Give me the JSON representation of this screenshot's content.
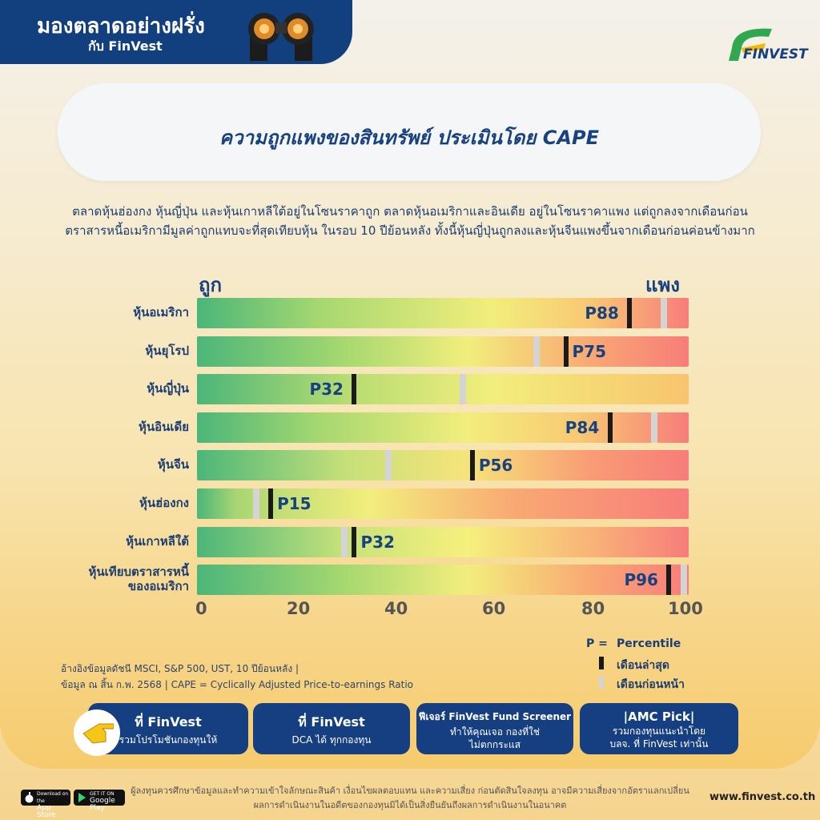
{
  "header": {
    "brand_title": "มองตลาดอย่างฝรั่ง",
    "brand_sub": "กับ FinVest",
    "logo_text": "FINVEST"
  },
  "title": "ความถูกแพงของสินทรัพย์ ประเมินโดย CAPE",
  "description": [
    "ตลาดหุ้นฮ่องกง หุ้นญี่ปุ่น และหุ้นเกาหลีใต้อยู่ในโซนราคาถูก ตลาดหุ้นอเมริกาและอินเดีย อยู่ในโซนราคาแพง แต่ถูกลงจากเดือนก่อน",
    "ตราสารหนี้อเมริกามีมูลค่าถูกแทบจะที่สุดเทียบหุ้น ในรอบ 10 ปีย้อนหลัง ทั้งนี้หุ้นญี่ปุ่นถูกลงและหุ้นจีนแพงขึ้นจากเดือนก่อนค่อนข้างมาก"
  ],
  "chart_data": {
    "type": "bar",
    "cheap_label": "ถูก",
    "expensive_label": "แพง",
    "xlim": [
      0,
      100
    ],
    "xticks": [
      "0",
      "20",
      "40",
      "60",
      "80",
      "100"
    ],
    "categories": [
      {
        "label": [
          "หุ้นอเมริกา"
        ],
        "current": 88,
        "previous": 95,
        "current_label": "P88",
        "label_side": "left",
        "gradient": "us"
      },
      {
        "label": [
          "หุ้นยุโรป"
        ],
        "current": 75,
        "previous": 69,
        "current_label": "P75",
        "label_side": "right",
        "gradient": "eu"
      },
      {
        "label": [
          "หุ้นญี่ปุ่น"
        ],
        "current": 32,
        "previous": 54,
        "current_label": "P32",
        "label_side": "left",
        "gradient": "jp"
      },
      {
        "label": [
          "หุ้นอินเดีย"
        ],
        "current": 84,
        "previous": 93,
        "current_label": "P84",
        "label_side": "left",
        "gradient": "in"
      },
      {
        "label": [
          "หุ้นจีน"
        ],
        "current": 56,
        "previous": 39,
        "current_label": "P56",
        "label_side": "right",
        "gradient": "cn"
      },
      {
        "label": [
          "หุ้นฮ่องกง"
        ],
        "current": 15,
        "previous": 12,
        "current_label": "P15",
        "label_side": "right",
        "gradient": "hk"
      },
      {
        "label": [
          "หุ้นเกาหลีใต้"
        ],
        "current": 32,
        "previous": 30,
        "current_label": "P32",
        "label_side": "right",
        "gradient": "kr"
      },
      {
        "label": [
          "หุ้นเทียบตราสารหนี้",
          "ของอเมริกา"
        ],
        "current": 96,
        "previous": 99,
        "current_label": "P96",
        "label_side": "left",
        "gradient": "bond"
      }
    ],
    "legend": {
      "p_key": "P =",
      "p_value": "Percentile",
      "current": "เดือนล่าสุด",
      "previous": "เดือนก่อนหน้า"
    },
    "colors": {
      "current_marker": "#1a1a1a",
      "previous_marker": "#d4d4d4",
      "cheap": "#4db87a",
      "mid": "#f5ef7a",
      "expensive": "#f77d7a"
    }
  },
  "notes": [
    "อ้างอิงข้อมูลดัชนี MSCI, S&P 500, UST, 10 ปีย้อนหลัง  |",
    "ข้อมูล ณ สิ้น ก.พ. 2568 | CAPE = Cyclically Adjusted Price-to-earnings Ratio"
  ],
  "cta": [
    {
      "title": "ที่ FinVest",
      "sub": "รวมโปรโมชันกองทุนให้"
    },
    {
      "title": "ที่ FinVest",
      "sub": "DCA ได้ ทุกกองทุน"
    },
    {
      "title": "ฟีเจอร์ FinVest Fund Screener",
      "sub": "ทำให้คุณเจอ กองที่ใช่",
      "sub2": "ไม่ตกกระแส"
    },
    {
      "title": "|AMC Pick|",
      "sub": "รวมกองทุนแนะนำโดย",
      "sub2": "บลจ. ที่ FinVest เท่านั้น"
    }
  ],
  "disclaimer": [
    "ผู้ลงทุนควรศึกษาข้อมูลและทำความเข้าใจลักษณะสินค้า เงื่อนไขผลตอบแทน และความเสี่ยง ก่อนตัดสินใจลงทุน อาจมีความเสี่ยงจากอัตราแลกเปลี่ยน",
    "ผลการดำเนินงานในอดีตของกองทุนมิได้เป็นสิ่งยืนยันถึงผลการดำเนินงานในอนาคต"
  ],
  "footer": {
    "app_store": [
      "Download on the",
      "App Store"
    ],
    "google_play": [
      "GET IT ON",
      "Google Play"
    ],
    "website": "www.finvest.co.th"
  }
}
